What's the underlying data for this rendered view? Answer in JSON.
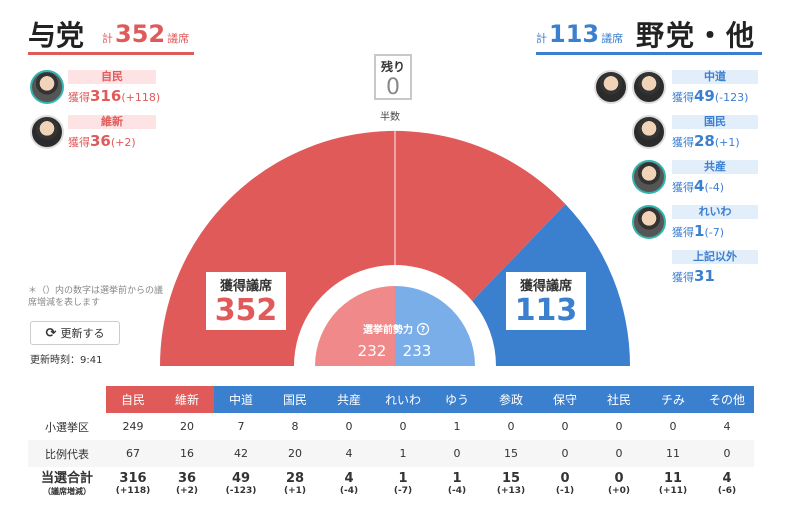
{
  "ruling": {
    "title": "与党",
    "total_prefix": "計",
    "total": "352",
    "total_suffix": "議席"
  },
  "opposition": {
    "title": "野党・他",
    "total_prefix": "計",
    "total": "113",
    "total_suffix": "議席"
  },
  "ruling_parties": [
    {
      "name": "自民",
      "seats_prefix": "獲得",
      "seats": "316",
      "delta": "(+118)"
    },
    {
      "name": "維新",
      "seats_prefix": "獲得",
      "seats": "36",
      "delta": "(+2)"
    }
  ],
  "opposition_parties": [
    {
      "name": "中道",
      "seats_prefix": "獲得",
      "seats": "49",
      "delta": "(-123)"
    },
    {
      "name": "国民",
      "seats_prefix": "獲得",
      "seats": "28",
      "delta": "(+1)"
    },
    {
      "name": "共産",
      "seats_prefix": "獲得",
      "seats": "4",
      "delta": "(-4)"
    },
    {
      "name": "れいわ",
      "seats_prefix": "獲得",
      "seats": "1",
      "delta": "(-7)"
    },
    {
      "name": "上記以外",
      "seats_prefix": "獲得",
      "seats": "31",
      "delta": ""
    }
  ],
  "remaining": {
    "label": "残り",
    "value": "0"
  },
  "majority_label": "半数",
  "ruling_box": {
    "label": "獲得議席",
    "value": "352"
  },
  "opposition_box": {
    "label": "獲得議席",
    "value": "113"
  },
  "pre_election": {
    "label": "選挙前勢力",
    "ruling": "232",
    "opposition": "233"
  },
  "note": "＊（）内の数字は選挙前からの議席増減を表します",
  "update_button": "更新する",
  "update_time": "更新時刻：9:41",
  "colors": {
    "ruling": "#e05a5a",
    "opposition": "#3b7fcf",
    "ruling_light": "#f08a8a",
    "opposition_light": "#7aaee8"
  },
  "table": {
    "headers": [
      "自民",
      "維新",
      "中道",
      "国民",
      "共産",
      "れいわ",
      "ゆう",
      "参政",
      "保守",
      "社民",
      "チみ",
      "その他"
    ],
    "rows": [
      {
        "label": "小選挙区",
        "values": [
          "249",
          "20",
          "7",
          "8",
          "0",
          "0",
          "1",
          "0",
          "0",
          "0",
          "0",
          "4"
        ]
      },
      {
        "label": "比例代表",
        "values": [
          "67",
          "16",
          "42",
          "20",
          "4",
          "1",
          "0",
          "15",
          "0",
          "0",
          "11",
          "0"
        ]
      }
    ],
    "total_label": "当選合計",
    "total_sublabel": "（議席増減）",
    "totals": [
      "316",
      "36",
      "49",
      "28",
      "4",
      "1",
      "1",
      "15",
      "0",
      "0",
      "11",
      "4"
    ],
    "deltas": [
      "(+118)",
      "(+2)",
      "(-123)",
      "(+1)",
      "(-4)",
      "(-7)",
      "(-4)",
      "(+13)",
      "(-1)",
      "(+0)",
      "(+11)",
      "(-6)"
    ]
  }
}
